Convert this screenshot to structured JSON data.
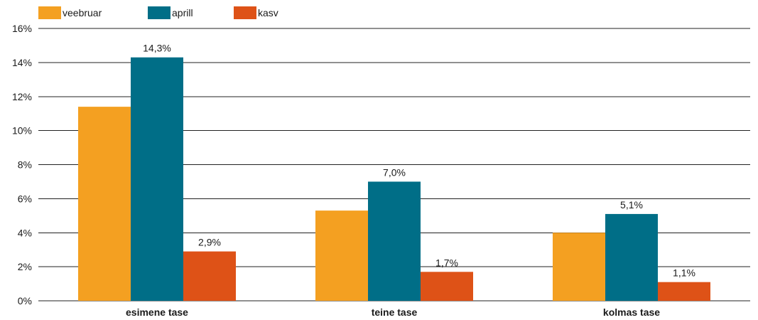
{
  "chart_data": {
    "type": "bar",
    "categories": [
      "esimene tase",
      "teine tase",
      "kolmas tase"
    ],
    "series": [
      {
        "name": "veebruar",
        "color": "#F4A021",
        "values": [
          11.4,
          5.3,
          4.0
        ],
        "labels": [
          "",
          "",
          ""
        ]
      },
      {
        "name": "aprill",
        "color": "#006E87",
        "values": [
          14.3,
          7.0,
          5.1
        ],
        "labels": [
          "14,3%",
          "7,0%",
          "5,1%"
        ]
      },
      {
        "name": "kasv",
        "color": "#DE5217",
        "values": [
          2.9,
          1.7,
          1.1
        ],
        "labels": [
          "2,9%",
          "1,7%",
          "1,1%"
        ]
      }
    ],
    "ylim": [
      0,
      16
    ],
    "yticks": [
      0,
      2,
      4,
      6,
      8,
      10,
      12,
      14,
      16
    ],
    "ytick_labels": [
      "0%",
      "2%",
      "4%",
      "6%",
      "8%",
      "10%",
      "12%",
      "14%",
      "16%"
    ],
    "grid": true,
    "legend_position": "top-left"
  }
}
